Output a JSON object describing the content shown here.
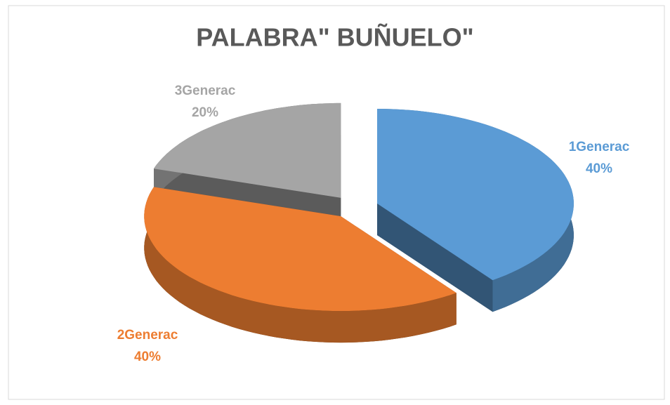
{
  "chart_data": {
    "type": "pie",
    "title": "PALABRA\" BUÑUELO\"",
    "categories": [
      "1Generac",
      "2Generac",
      "3Generac"
    ],
    "values": [
      40,
      40,
      20
    ],
    "value_labels": [
      "40%",
      "40%",
      "20%"
    ],
    "colors": [
      "#5b9bd5",
      "#ed7d31",
      "#a5a5a5"
    ]
  }
}
